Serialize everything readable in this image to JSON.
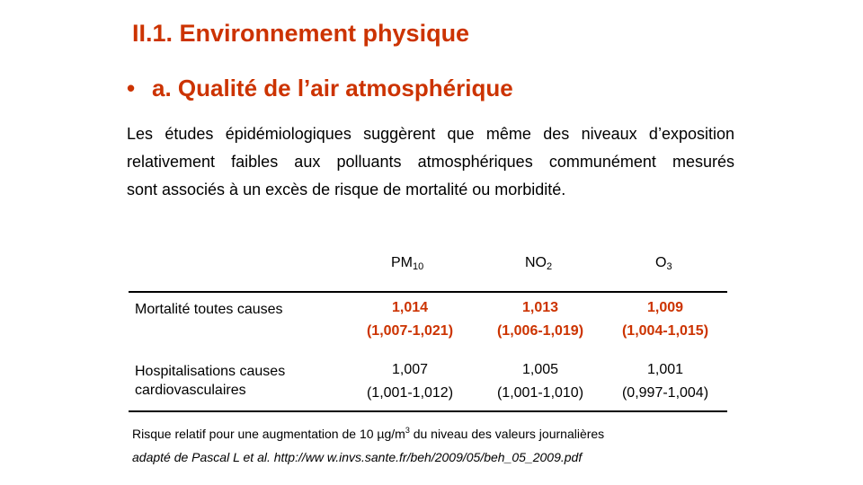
{
  "title": "II.1. Environnement physique",
  "subtitle": "a. Qualité de l’air atmosphérique",
  "bullet": "•",
  "paragraph_lines": [
    "Les études épidémiologiques  suggèrent que même des niveaux  d’exposition",
    "relativement faibles aux polluants atmosphériques communément  mesurés",
    "sont associés à un excès de risque de mortalité ou morbidité."
  ],
  "table": {
    "columns": [
      {
        "base": "PM",
        "sub": "10"
      },
      {
        "base": "NO",
        "sub": "2"
      },
      {
        "base": "O",
        "sub": "3"
      }
    ],
    "rows": [
      {
        "label": "Mortalité toutes causes",
        "cells": [
          {
            "value": "1,014",
            "ci": "(1,007-1,021)"
          },
          {
            "value": "1,013",
            "ci": "(1,006-1,019)"
          },
          {
            "value": "1,009",
            "ci": "(1,004-1,015)"
          }
        ]
      },
      {
        "label": "Hospitalisations causes cardiovasculaires",
        "cells": [
          {
            "value": "1,007",
            "ci": "(1,001-1,012)"
          },
          {
            "value": "1,005",
            "ci": "(1,001-1,010)"
          },
          {
            "value": "1,001",
            "ci": "(0,997-1,004)"
          }
        ]
      }
    ]
  },
  "note": {
    "before": "Risque relatif pour une augmentation  de 10 µg/m",
    "sup": "3",
    "after": " du niveau des valeurs journalières"
  },
  "source": "adapté de Pascal L et al. http://ww w.invs.sante.fr/beh/2009/05/beh_05_2009.pdf",
  "colors": {
    "accent": "#cc3300",
    "text": "#000000"
  }
}
